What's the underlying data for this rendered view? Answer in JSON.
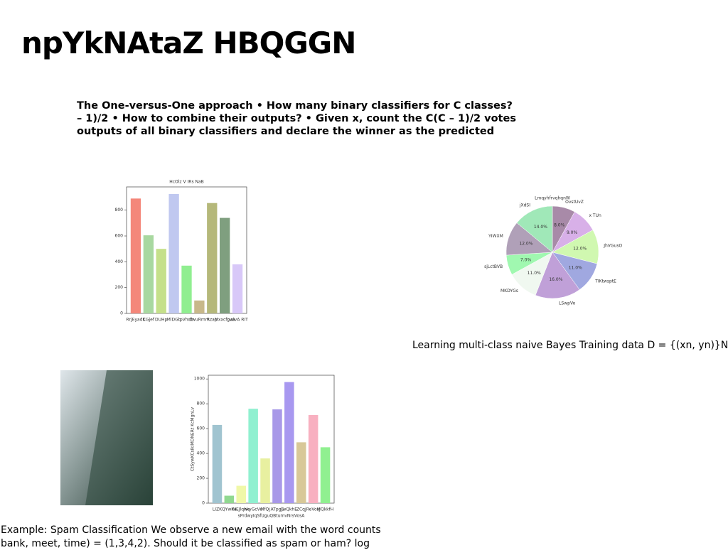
{
  "title": "npYkNAtaZ HBQGGN",
  "intro": [
    "The One-versus-One approach • How many binary classifiers for C classes?",
    "– 1)/2 • How to combine their outputs? • Given x, count the C(C – 1)/2 votes",
    "outputs of all binary classifiers and declare the winner as the predicted"
  ],
  "caption": "Learning multi-class naive Bayes Training data D = {(xn, yn)}N",
  "footer": [
    "Example: Spam Classification We observe a new email with the word counts",
    "bank, meet, time) = (1,3,4,2). Should it be classified as spam or ham? log"
  ],
  "chart_data": [
    {
      "type": "bar",
      "title": "HcOlz V IRs  NaB",
      "categories": [
        "RrjEyadK",
        "CGjef",
        "DUHp",
        "MlDGb",
        "pVhdb",
        "dwuRmm",
        "Rzap",
        "Mxxcfoua",
        "gwlvA RIT"
      ],
      "values": [
        890,
        605,
        500,
        925,
        370,
        100,
        855,
        740,
        380
      ],
      "colors": [
        "#f4877a",
        "#a8d8a0",
        "#c5e08a",
        "#c0c8f0",
        "#90ee90",
        "#c8b88a",
        "#b5b87a",
        "#7f9f7f",
        "#d8c8f8"
      ],
      "ylim": [
        0,
        980
      ],
      "yticks": [
        0,
        200,
        400,
        600,
        800
      ]
    },
    {
      "type": "pie",
      "title": "LmqyhfrvqhqnW",
      "categories": [
        "OvstUvZ",
        "x TUn",
        "JhVGusO",
        "TIKtwsptE",
        "LSwpVo",
        "MKDYGs",
        "sjLctBVB",
        "YIWXM",
        "jXdSI"
      ],
      "values": [
        8,
        9,
        12,
        11,
        16,
        11,
        7,
        12,
        14
      ],
      "value_labels": [
        "8.0%",
        "9.0%",
        "12.0%",
        "11.0%",
        "16.0%",
        "11.0%",
        "7.0%",
        "12.0%",
        "14.0%"
      ],
      "colors": [
        "#a88aa8",
        "#d8b0e8",
        "#d0f8b0",
        "#a0a8e0",
        "#c0a0d8",
        "#f0f8f0",
        "#a0f8b0",
        "#b0a0b8",
        "#a0e8b8"
      ]
    },
    {
      "type": "bar",
      "ylabel": "CtSywKCsIkIMDNERt KcMgnLv",
      "xlabel": "sPrdwyIqSfUguQBtumvNrsVosA",
      "categories": [
        "LIZK",
        "QYwKa",
        "MEJlqwe",
        "hkyGcVu",
        "MfQj",
        "ATpgE",
        "jwQkhE",
        "ZCqj",
        "ReVosJ",
        "MQkkfH"
      ],
      "values": [
        630,
        60,
        140,
        760,
        360,
        755,
        975,
        490,
        710,
        450
      ],
      "colors": [
        "#a0c4d0",
        "#90d890",
        "#f0f8a8",
        "#90f0d0",
        "#e8f0a0",
        "#a898e8",
        "#a898f0",
        "#d8c898",
        "#f8b0c0",
        "#90f090"
      ],
      "ylim": [
        0,
        1030
      ],
      "yticks": [
        0,
        200,
        400,
        600,
        800,
        1000
      ]
    }
  ]
}
